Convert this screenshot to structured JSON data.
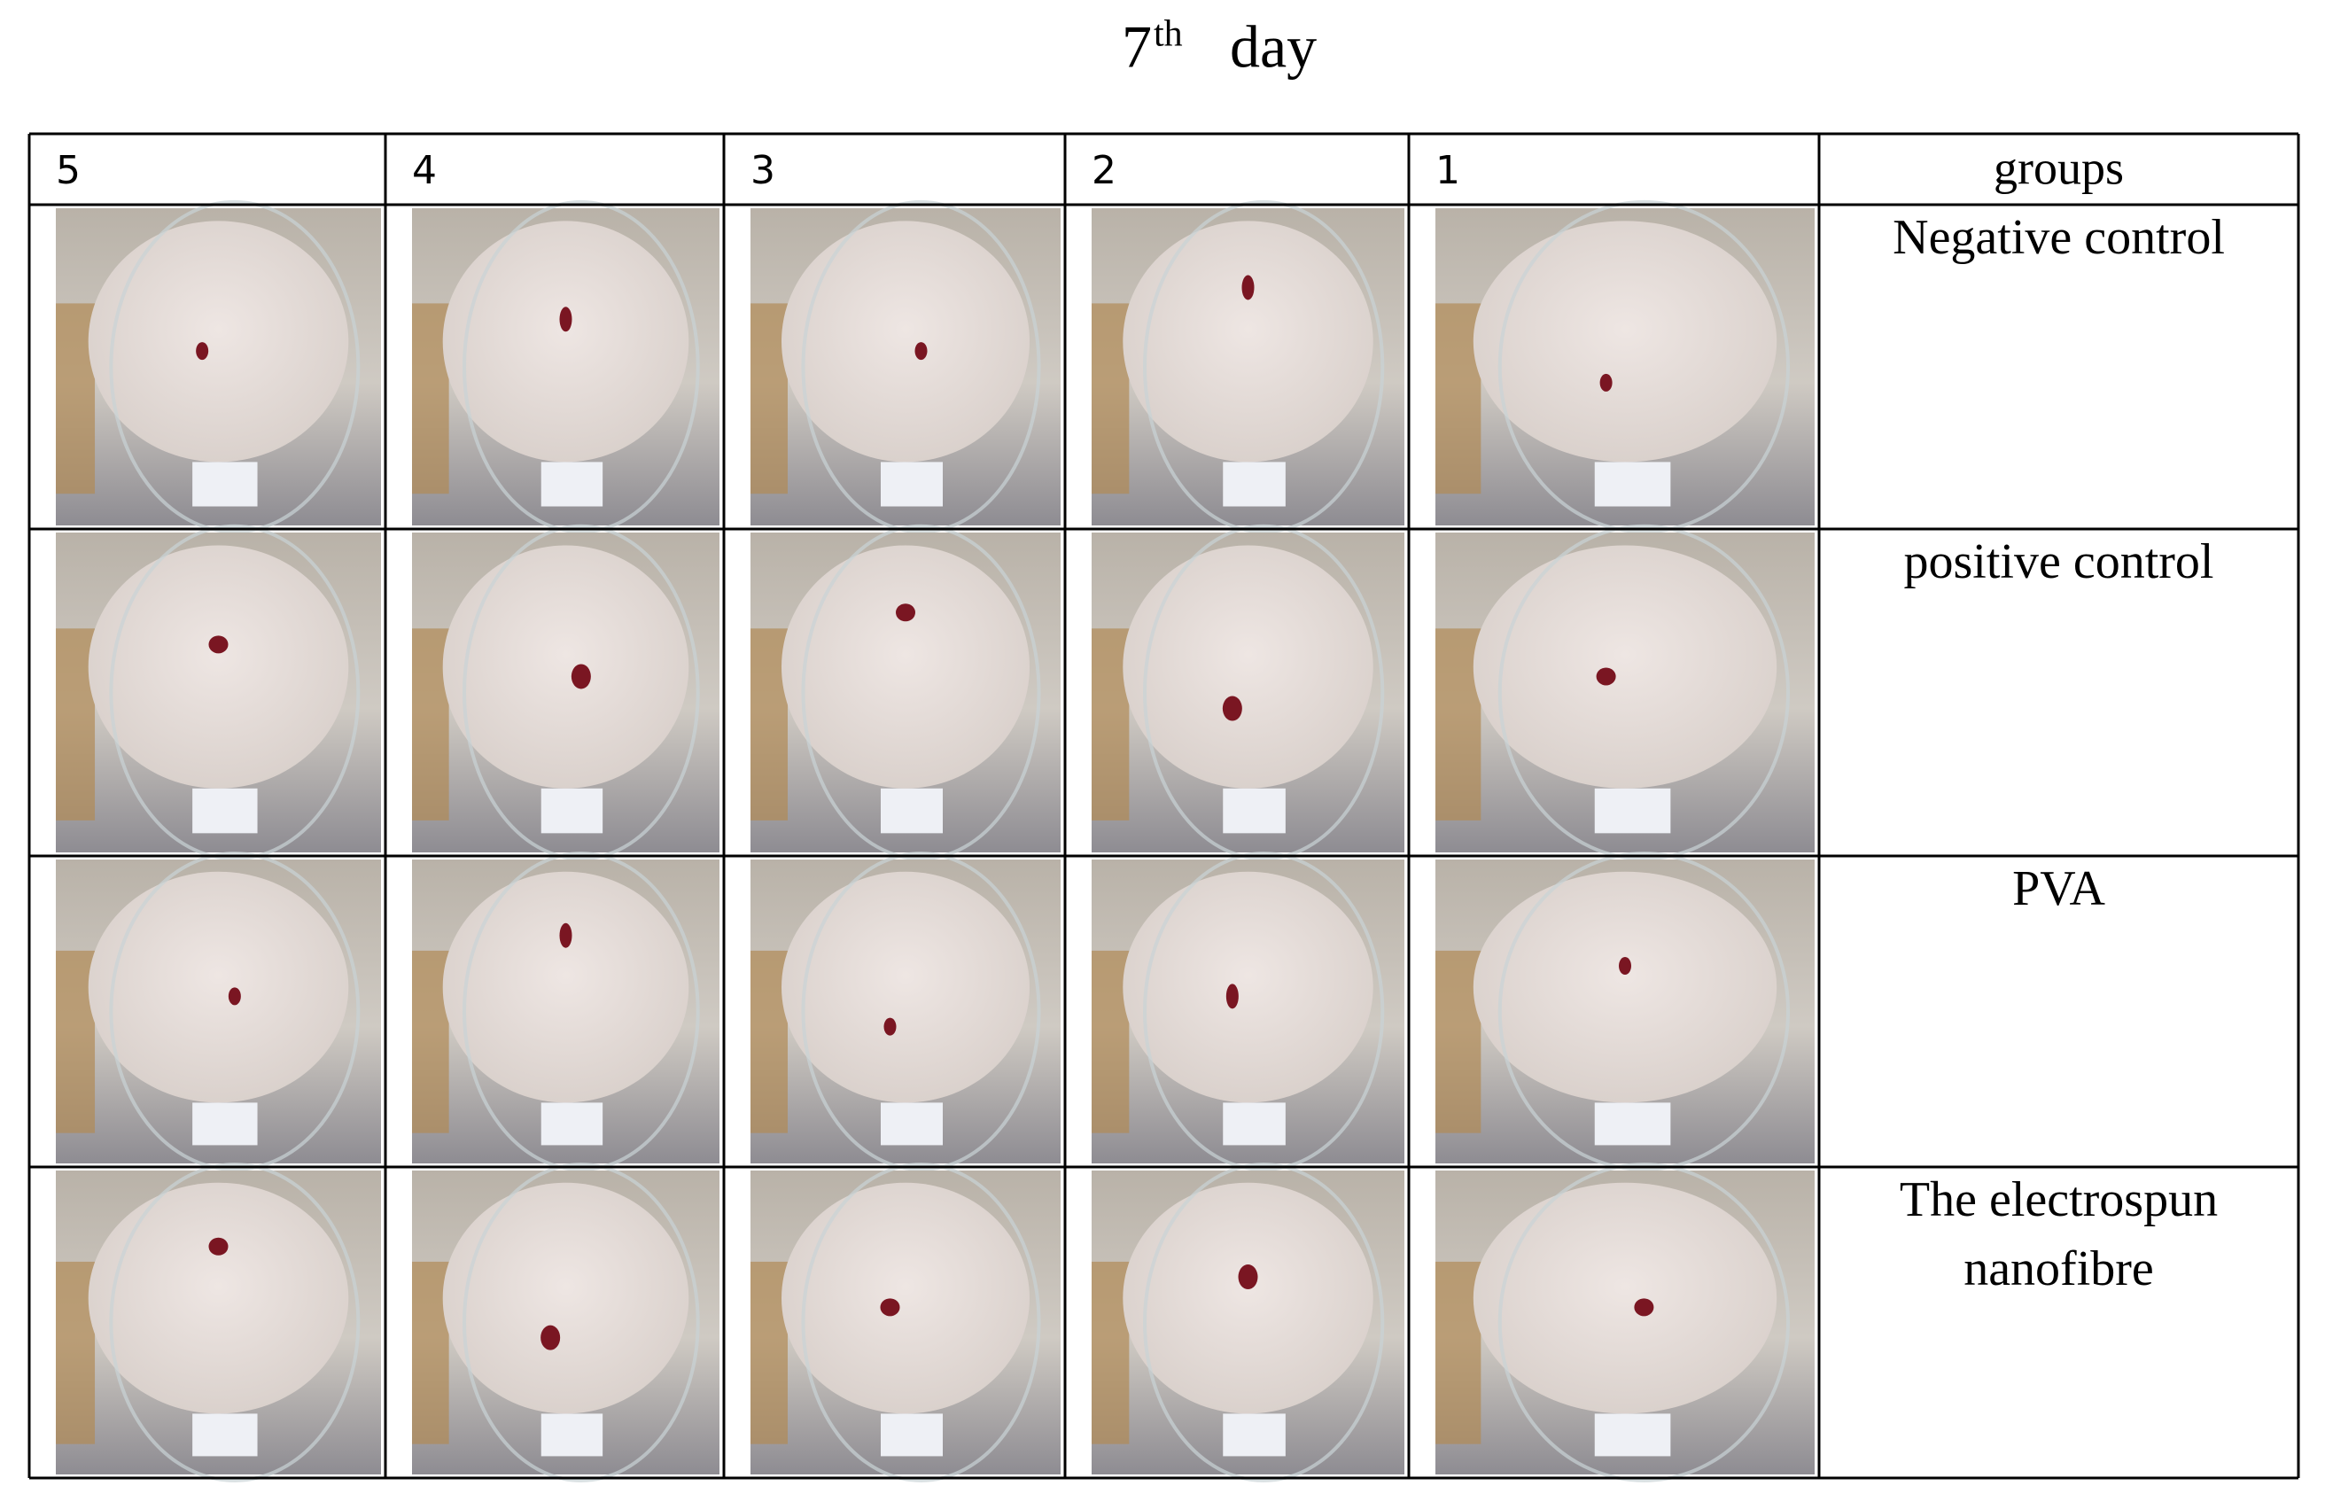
{
  "figure": {
    "title": {
      "number": "7",
      "superscript": "th",
      "rest": "day"
    },
    "table": {
      "header": [
        "5",
        "4",
        "3",
        "2",
        "1",
        "groups"
      ],
      "rows": [
        {
          "group": [
            "Negative control"
          ]
        },
        {
          "group": [
            "positive control"
          ]
        },
        {
          "group": [
            "PVA"
          ]
        },
        {
          "group": [
            "The electrospun",
            "nanofibre"
          ]
        }
      ]
    }
  }
}
